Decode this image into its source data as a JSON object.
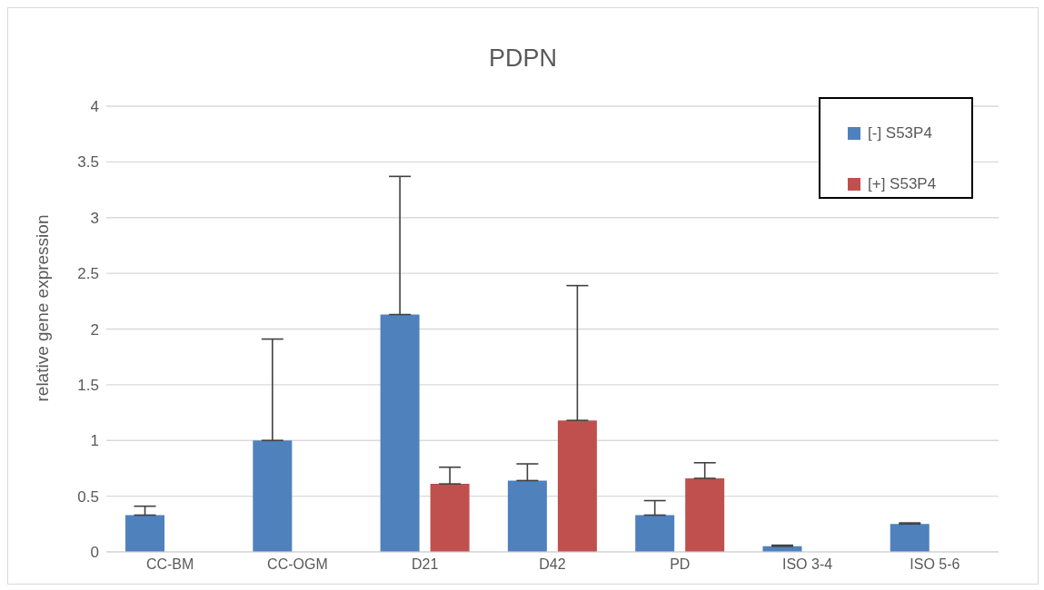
{
  "chart_data": {
    "type": "bar",
    "title": "PDPN",
    "ylabel": "relative gene expression",
    "categories": [
      "CC-BM",
      "CC-OGM",
      "D21",
      "D42",
      "PD",
      "ISO 3-4",
      "ISO 5-6"
    ],
    "series": [
      {
        "name": "[-] S53P4",
        "color": "#4f81bd",
        "values": [
          0.33,
          1.0,
          2.13,
          0.64,
          0.33,
          0.05,
          0.25
        ],
        "errors": [
          [
            0.33,
            0.41
          ],
          [
            1.0,
            1.91
          ],
          [
            2.13,
            3.37
          ],
          [
            0.64,
            0.79
          ],
          [
            0.33,
            0.46
          ],
          [
            0.05,
            0.06
          ],
          [
            0.25,
            0.26
          ]
        ]
      },
      {
        "name": "[+] S53P4",
        "color": "#c0504d",
        "values": [
          null,
          null,
          0.61,
          1.18,
          0.66,
          null,
          null
        ],
        "errors": [
          null,
          null,
          [
            0.61,
            0.76
          ],
          [
            1.18,
            2.39
          ],
          [
            0.66,
            0.8
          ],
          null,
          null
        ]
      }
    ],
    "ylim": [
      0,
      4
    ],
    "yticks": [
      0,
      0.5,
      1,
      1.5,
      2,
      2.5,
      3,
      3.5,
      4
    ],
    "grid": "y",
    "legend": "top right"
  }
}
